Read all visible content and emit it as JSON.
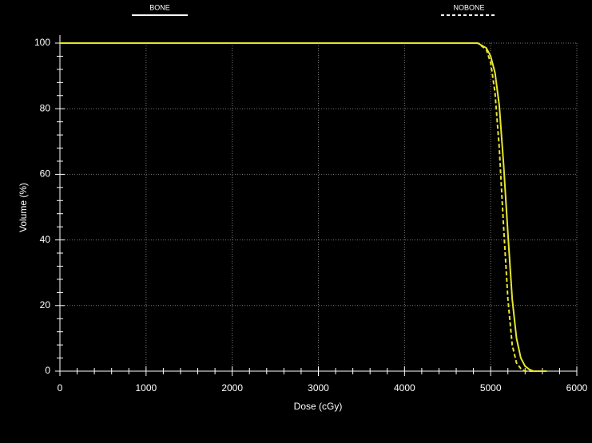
{
  "chart_data": {
    "type": "line",
    "x_label": "Dose (cGy)",
    "y_label": "Volume (%)",
    "xlim": [
      0,
      6000
    ],
    "xticks": [
      0,
      1000,
      2000,
      3000,
      4000,
      5000,
      6000
    ],
    "ylim": [
      0,
      100
    ],
    "yticks": [
      0,
      20,
      40,
      60,
      80,
      100
    ],
    "x_minor_ticks": [
      200,
      400,
      600,
      800,
      1200,
      1400,
      1600,
      1800,
      2200,
      2400,
      2600,
      2800,
      3200,
      3400,
      3600,
      3800,
      4200,
      4400,
      4600,
      4800,
      5200,
      5400,
      5600,
      5800
    ],
    "y_minor_ticks": [
      4,
      8,
      12,
      16,
      24,
      28,
      32,
      36,
      44,
      48,
      52,
      56,
      64,
      68,
      72,
      76,
      84,
      88,
      92,
      96
    ],
    "grid": true,
    "series": [
      {
        "name": "BONE",
        "color": "#e6e62e",
        "dash": false,
        "x": [
          0,
          4850,
          4950,
          5000,
          5050,
          5100,
          5150,
          5200,
          5250,
          5300,
          5350,
          5400,
          5450,
          5500,
          5650
        ],
        "values": [
          100,
          100,
          98.5,
          96,
          91,
          81,
          63,
          42,
          22,
          10,
          4,
          1.5,
          0.5,
          0,
          0
        ]
      },
      {
        "name": "NOBONE",
        "color": "#e6e62e",
        "dash": true,
        "x": [
          0,
          4850,
          4950,
          5000,
          5050,
          5100,
          5150,
          5200,
          5250,
          5300,
          5350,
          5400,
          5500
        ],
        "values": [
          100,
          100,
          98,
          94,
          85,
          68,
          44,
          22,
          8,
          2.5,
          0.8,
          0,
          0
        ]
      }
    ]
  }
}
